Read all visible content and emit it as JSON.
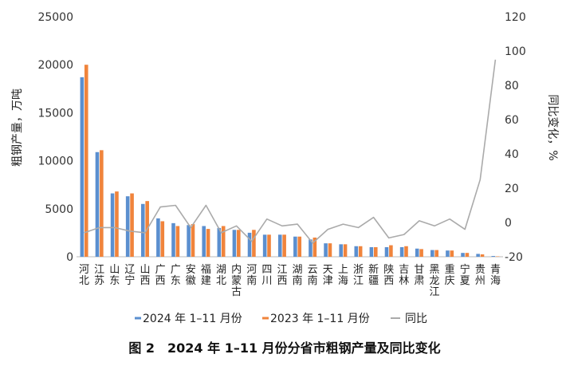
{
  "chart_data": {
    "type": "bar",
    "title": "图 2　2024 年 1–11 月份分省市粗钢产量及同比变化",
    "ylabel": "粗钢产量，万吨",
    "y2label": "同比变化，%",
    "ylim": [
      0,
      25000
    ],
    "y2lim": [
      -20,
      120
    ],
    "yticks": [
      "0",
      "5000",
      "10000",
      "15000",
      "20000",
      "25000"
    ],
    "y2ticks": [
      "-20",
      "0",
      "20",
      "40",
      "60",
      "80",
      "100",
      "120"
    ],
    "categories": [
      "河北",
      "江苏",
      "山东",
      "辽宁",
      "山西",
      "广西",
      "广东",
      "安徽",
      "福建",
      "湖北",
      "内蒙古",
      "河南",
      "四川",
      "江西",
      "湖南",
      "云南",
      "天津",
      "上海",
      "浙江",
      "新疆",
      "陕西",
      "吉林",
      "甘肃",
      "黑龙江",
      "重庆",
      "宁夏",
      "贵州",
      "青海"
    ],
    "series": [
      {
        "name": "2024 年 1–11 月份",
        "kind": "bar",
        "color": "#5b8fcf",
        "values": [
          18700,
          10900,
          6600,
          6300,
          5500,
          4000,
          3500,
          3300,
          3200,
          3000,
          2800,
          2500,
          2300,
          2300,
          2100,
          1800,
          1400,
          1300,
          1100,
          1000,
          1000,
          1000,
          850,
          700,
          650,
          400,
          300,
          80
        ]
      },
      {
        "name": "2023 年 1–11 月份",
        "kind": "bar",
        "color": "#f0843c",
        "values": [
          20000,
          11100,
          6800,
          6600,
          5800,
          3700,
          3200,
          3400,
          2900,
          3200,
          2800,
          2800,
          2300,
          2300,
          2100,
          2000,
          1400,
          1300,
          1100,
          1000,
          1200,
          1100,
          800,
          700,
          650,
          400,
          250,
          40
        ]
      },
      {
        "name": "同比",
        "kind": "line",
        "axis": "right",
        "color": "#aaaaaa",
        "values": [
          -6,
          -3,
          -3,
          -5,
          -6,
          9,
          10,
          -3,
          10,
          -6,
          -2,
          -11,
          2,
          -2,
          -1,
          -12,
          -4,
          -1,
          -3,
          3,
          -9,
          -7,
          1,
          -2,
          2,
          -4,
          25,
          95
        ]
      }
    ],
    "legend_position": "bottom",
    "grid": false
  }
}
